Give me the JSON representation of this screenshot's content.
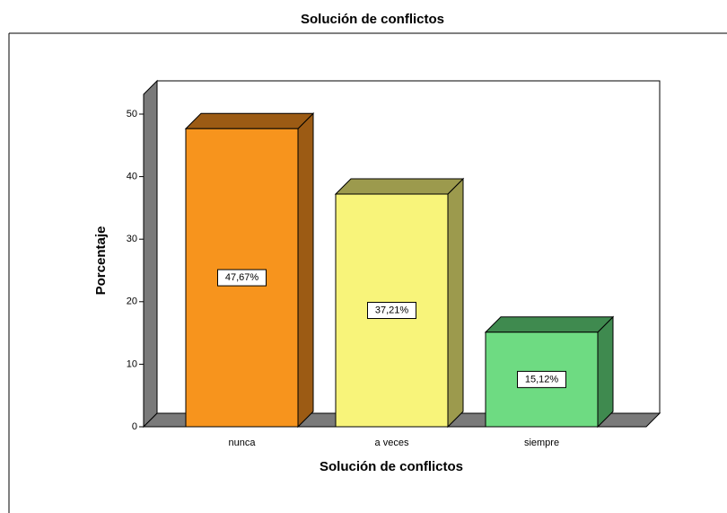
{
  "chart_data": {
    "type": "bar3d",
    "title": "Solución de conflictos",
    "x_label": "Solución de conflictos",
    "y_label": "Porcentaje",
    "categories": [
      "nunca",
      "a veces",
      "siempre"
    ],
    "values": [
      47.67,
      37.21,
      15.12
    ],
    "value_labels": [
      "47,67%",
      "37,21%",
      "15,12%"
    ],
    "colors": [
      "#f7941d",
      "#f8f47a",
      "#6edb82"
    ],
    "side_colors": [
      "#9c5b14",
      "#9c9a4d",
      "#3f8a4f"
    ],
    "ylim": [
      0,
      55
    ],
    "yticks": [
      0,
      10,
      20,
      30,
      40,
      50
    ]
  }
}
